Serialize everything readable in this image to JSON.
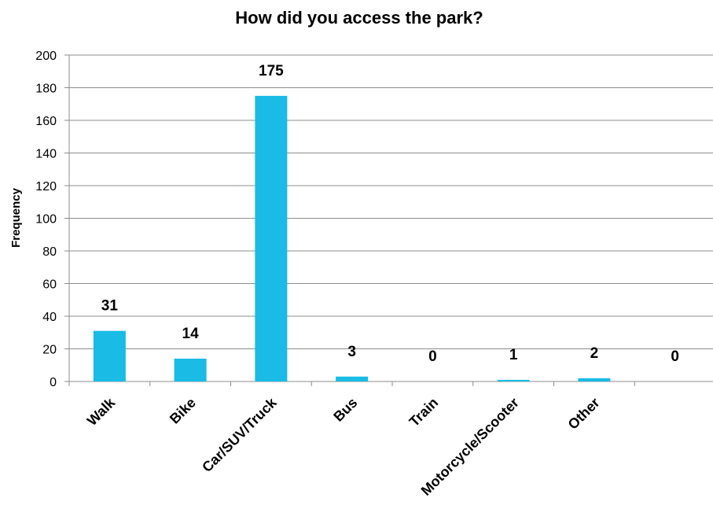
{
  "chart_data": {
    "type": "bar",
    "title": "How did you access the park?",
    "xlabel": "",
    "ylabel": "Frequency",
    "ylim": [
      0,
      200
    ],
    "ytick_step": 20,
    "grid": true,
    "legend": "none",
    "bar_color": "#1ABBE4",
    "categories": [
      "Walk",
      "Bike",
      "Car/SUV/Truck",
      "Bus",
      "Train",
      "Motorcycle/Scooter",
      "Other",
      ""
    ],
    "values": [
      31,
      14,
      175,
      3,
      0,
      1,
      2,
      0
    ]
  }
}
